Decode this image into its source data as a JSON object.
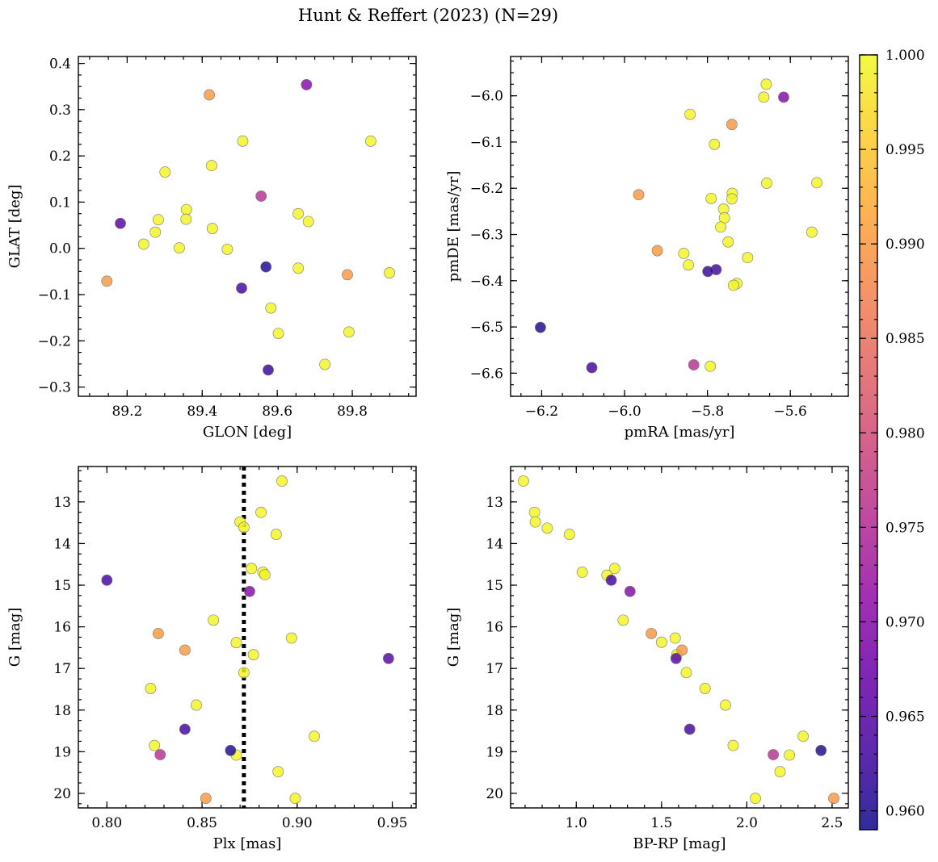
{
  "figure": {
    "title": "Hunt & Reffert (2023) (N=29)"
  },
  "chart_data": [
    {
      "type": "scatter",
      "xlabel": "GLON [deg]",
      "ylabel": "GLAT [deg]",
      "xlim": [
        89.07,
        89.97
      ],
      "ylim": [
        -0.32,
        0.415
      ],
      "xticks": [
        89.2,
        89.4,
        89.6,
        89.8
      ],
      "xtick_labels": [
        "89.2",
        "89.4",
        "89.6",
        "89.8"
      ],
      "yticks": [
        -0.3,
        -0.2,
        -0.1,
        0.0,
        0.1,
        0.2,
        0.3,
        0.4
      ],
      "ytick_labels": [
        "−0.3",
        "−0.2",
        "−0.1",
        "0.0",
        "0.1",
        "0.2",
        "0.3",
        "0.4"
      ],
      "minor_x": 0.05,
      "minor_y": 0.025,
      "invert_y": false,
      "points": [
        [
          89.419,
          0.332,
          0.99
        ],
        [
          89.678,
          0.354,
          0.97
        ],
        [
          89.849,
          0.232,
          0.9995
        ],
        [
          89.508,
          0.232,
          0.9995
        ],
        [
          89.425,
          0.179,
          0.9995
        ],
        [
          89.301,
          0.165,
          0.9995
        ],
        [
          89.182,
          0.054,
          0.965
        ],
        [
          89.557,
          0.113,
          0.976
        ],
        [
          89.283,
          0.062,
          0.9995
        ],
        [
          89.358,
          0.084,
          0.9995
        ],
        [
          89.357,
          0.063,
          0.9995
        ],
        [
          89.427,
          0.043,
          0.9995
        ],
        [
          89.656,
          0.075,
          0.9995
        ],
        [
          89.683,
          0.058,
          0.9995
        ],
        [
          89.275,
          0.035,
          0.9995
        ],
        [
          89.244,
          0.009,
          0.9995
        ],
        [
          89.339,
          0.001,
          0.9995
        ],
        [
          89.467,
          -0.002,
          0.9995
        ],
        [
          89.57,
          -0.04,
          0.96
        ],
        [
          89.656,
          -0.043,
          0.9995
        ],
        [
          89.899,
          -0.053,
          0.9995
        ],
        [
          89.787,
          -0.057,
          0.99
        ],
        [
          89.146,
          -0.071,
          0.99
        ],
        [
          89.505,
          -0.086,
          0.963
        ],
        [
          89.583,
          -0.129,
          0.9995
        ],
        [
          89.603,
          -0.184,
          0.9995
        ],
        [
          89.791,
          -0.181,
          0.9995
        ],
        [
          89.727,
          -0.251,
          0.9995
        ],
        [
          89.576,
          -0.263,
          0.962
        ]
      ]
    },
    {
      "type": "scatter",
      "xlabel": "pmRA [mas/yr]",
      "ylabel": "pmDE [mas/yr]",
      "xlim": [
        -6.275,
        -5.46
      ],
      "ylim": [
        -6.65,
        -5.915
      ],
      "xticks": [
        -6.2,
        -6.0,
        -5.8,
        -5.6
      ],
      "xtick_labels": [
        "−6.2",
        "−6.0",
        "−5.8",
        "−5.6"
      ],
      "yticks": [
        -6.6,
        -6.5,
        -6.4,
        -6.3,
        -6.2,
        -6.1,
        -6.0
      ],
      "ytick_labels": [
        "−6.6",
        "−6.5",
        "−6.4",
        "−6.3",
        "−6.2",
        "−6.1",
        "−6.0"
      ],
      "minor_x": 0.05,
      "minor_y": 0.025,
      "invert_y": false,
      "points": [
        [
          -5.658,
          -5.975,
          0.9995
        ],
        [
          -5.616,
          -6.003,
          0.97
        ],
        [
          -5.664,
          -6.003,
          0.9995
        ],
        [
          -5.842,
          -6.04,
          0.9995
        ],
        [
          -5.741,
          -6.062,
          0.99
        ],
        [
          -5.783,
          -6.105,
          0.9995
        ],
        [
          -5.536,
          -6.188,
          0.9995
        ],
        [
          -5.657,
          -6.189,
          0.9995
        ],
        [
          -5.74,
          -6.211,
          0.9995
        ],
        [
          -5.966,
          -6.214,
          0.99
        ],
        [
          -5.791,
          -6.222,
          0.9995
        ],
        [
          -5.741,
          -6.223,
          0.9995
        ],
        [
          -5.761,
          -6.245,
          0.9995
        ],
        [
          -5.759,
          -6.264,
          0.9995
        ],
        [
          -5.768,
          -6.284,
          0.9995
        ],
        [
          -5.548,
          -6.295,
          0.9995
        ],
        [
          -5.75,
          -6.316,
          0.9995
        ],
        [
          -5.921,
          -6.335,
          0.99
        ],
        [
          -5.857,
          -6.341,
          0.9995
        ],
        [
          -5.703,
          -6.35,
          0.9995
        ],
        [
          -5.846,
          -6.366,
          0.9995
        ],
        [
          -5.779,
          -6.376,
          0.963
        ],
        [
          -5.799,
          -6.38,
          0.962
        ],
        [
          -5.729,
          -6.406,
          0.9995
        ],
        [
          -5.737,
          -6.41,
          0.9995
        ],
        [
          -6.203,
          -6.501,
          0.96
        ],
        [
          -5.833,
          -6.582,
          0.976
        ],
        [
          -5.793,
          -6.585,
          0.9995
        ],
        [
          -6.079,
          -6.588,
          0.963
        ]
      ]
    },
    {
      "type": "scatter",
      "xlabel": "Plx [mas]",
      "ylabel": "G [mag]",
      "xlim": [
        0.785,
        0.9625
      ],
      "ylim": [
        12.15,
        20.35
      ],
      "xticks": [
        0.8,
        0.85,
        0.9,
        0.95
      ],
      "xtick_labels": [
        "0.80",
        "0.85",
        "0.90",
        "0.95"
      ],
      "yticks": [
        13,
        14,
        15,
        16,
        17,
        18,
        19,
        20
      ],
      "ytick_labels": [
        "13",
        "14",
        "15",
        "16",
        "17",
        "18",
        "19",
        "20"
      ],
      "minor_x": 0.01,
      "minor_y": 0.25,
      "invert_y": true,
      "vline": {
        "x": 0.872,
        "style": "dotted"
      },
      "points": [
        [
          0.892,
          12.5,
          0.9995
        ],
        [
          0.881,
          13.25,
          0.9995
        ],
        [
          0.87,
          13.48,
          0.9995
        ],
        [
          0.872,
          13.61,
          0.9995
        ],
        [
          0.889,
          13.78,
          0.9995
        ],
        [
          0.876,
          14.6,
          0.9995
        ],
        [
          0.882,
          14.69,
          0.9995
        ],
        [
          0.883,
          14.75,
          0.9995
        ],
        [
          0.875,
          15.15,
          0.97
        ],
        [
          0.8,
          14.88,
          0.963
        ],
        [
          0.856,
          15.84,
          0.9995
        ],
        [
          0.827,
          16.16,
          0.99
        ],
        [
          0.897,
          16.27,
          0.9995
        ],
        [
          0.868,
          16.38,
          0.9995
        ],
        [
          0.841,
          16.56,
          0.99
        ],
        [
          0.877,
          16.67,
          0.9995
        ],
        [
          0.948,
          16.76,
          0.965
        ],
        [
          0.872,
          17.1,
          0.9995
        ],
        [
          0.823,
          17.48,
          0.9995
        ],
        [
          0.847,
          17.88,
          0.9995
        ],
        [
          0.841,
          18.46,
          0.963
        ],
        [
          0.909,
          18.63,
          0.9995
        ],
        [
          0.825,
          18.85,
          0.9995
        ],
        [
          0.865,
          18.97,
          0.96
        ],
        [
          0.868,
          19.08,
          0.9995
        ],
        [
          0.828,
          19.07,
          0.976
        ],
        [
          0.89,
          19.48,
          0.9995
        ],
        [
          0.852,
          20.12,
          0.99
        ],
        [
          0.899,
          20.12,
          0.9995
        ]
      ]
    },
    {
      "type": "scatter",
      "xlabel": "BP-RP [mag]",
      "ylabel": "G [mag]",
      "xlim": [
        0.615,
        2.595
      ],
      "ylim": [
        12.15,
        20.35
      ],
      "xticks": [
        1.0,
        1.5,
        2.0,
        2.5
      ],
      "xtick_labels": [
        "1.0",
        "1.5",
        "2.0",
        "2.5"
      ],
      "yticks": [
        13,
        14,
        15,
        16,
        17,
        18,
        19,
        20
      ],
      "ytick_labels": [
        "13",
        "14",
        "15",
        "16",
        "17",
        "18",
        "19",
        "20"
      ],
      "minor_x": 0.1,
      "minor_y": 0.25,
      "invert_y": true,
      "points": [
        [
          0.69,
          12.5,
          0.9995
        ],
        [
          0.755,
          13.25,
          0.9995
        ],
        [
          0.76,
          13.48,
          0.9995
        ],
        [
          0.83,
          13.63,
          0.9995
        ],
        [
          0.96,
          13.78,
          0.9995
        ],
        [
          1.035,
          14.69,
          0.9995
        ],
        [
          1.225,
          14.6,
          0.9995
        ],
        [
          1.18,
          14.76,
          0.9995
        ],
        [
          1.205,
          14.88,
          0.963
        ],
        [
          1.315,
          15.15,
          0.97
        ],
        [
          1.275,
          15.84,
          0.9995
        ],
        [
          1.44,
          16.16,
          0.99
        ],
        [
          1.5,
          16.37,
          0.9995
        ],
        [
          1.58,
          16.27,
          0.9995
        ],
        [
          1.62,
          16.56,
          0.99
        ],
        [
          1.59,
          16.67,
          0.9995
        ],
        [
          1.585,
          16.76,
          0.965
        ],
        [
          1.645,
          17.1,
          0.9995
        ],
        [
          1.755,
          17.48,
          0.9995
        ],
        [
          1.875,
          17.88,
          0.9995
        ],
        [
          1.665,
          18.46,
          0.963
        ],
        [
          2.33,
          18.63,
          0.9995
        ],
        [
          1.92,
          18.85,
          0.9995
        ],
        [
          2.435,
          18.97,
          0.96
        ],
        [
          2.25,
          19.08,
          0.9995
        ],
        [
          2.155,
          19.07,
          0.976
        ],
        [
          2.195,
          19.48,
          0.9995
        ],
        [
          2.05,
          20.12,
          0.9995
        ],
        [
          2.51,
          20.12,
          0.99
        ]
      ]
    }
  ],
  "colorbar": {
    "cmap": "plasma",
    "vmin": 0.959,
    "vmax": 1.0,
    "ticks": [
      0.96,
      0.965,
      0.97,
      0.975,
      0.98,
      0.985,
      0.99,
      0.995,
      1.0
    ],
    "tick_labels": [
      "0.960",
      "0.965",
      "0.970",
      "0.975",
      "0.980",
      "0.985",
      "0.990",
      "0.995",
      "1.000"
    ]
  }
}
